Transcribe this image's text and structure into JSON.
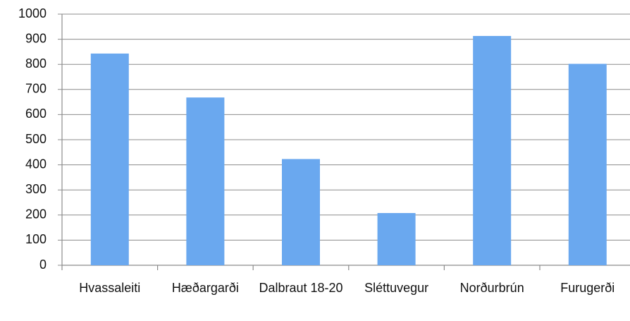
{
  "chart_data": {
    "type": "bar",
    "categories": [
      "Hvassaleiti",
      "Hæðargarði",
      "Dalbraut 18-20",
      "Sléttuvegur",
      "Norðurbrún",
      "Furugerði"
    ],
    "values": [
      843,
      668,
      423,
      208,
      913,
      802
    ],
    "color": "#6aa8ef",
    "ylim": [
      0,
      1000
    ],
    "yticks": [
      0,
      100,
      200,
      300,
      400,
      500,
      600,
      700,
      800,
      900,
      1000
    ],
    "grid": true
  }
}
